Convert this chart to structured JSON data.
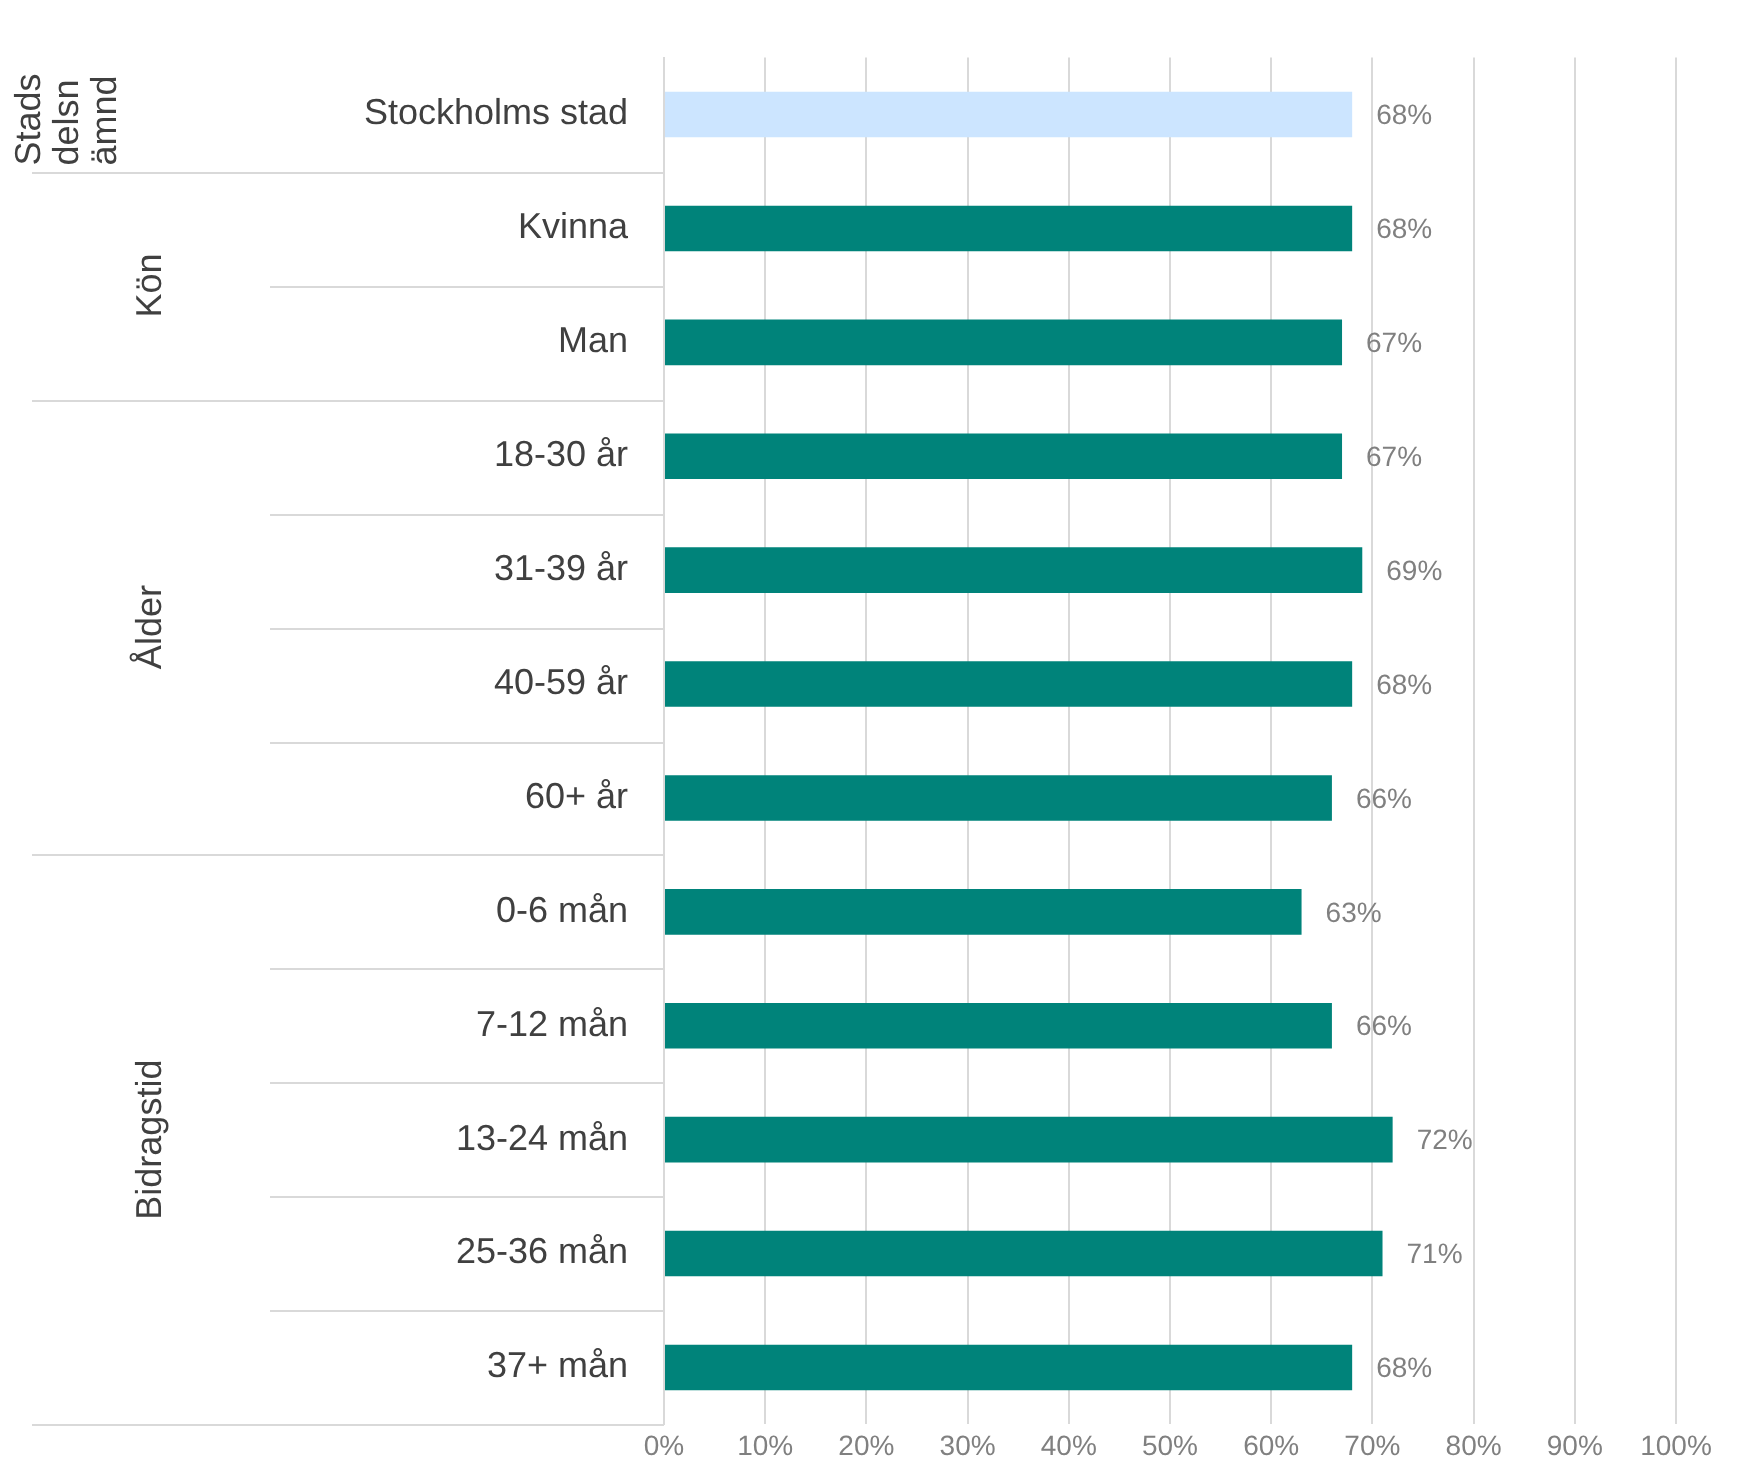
{
  "chart_data": {
    "type": "bar",
    "orientation": "horizontal",
    "categories": [
      "Stockholms stad",
      "Kvinna",
      "Man",
      "18-30 år",
      "31-39 år",
      "40-59 år",
      "60+ år",
      "0-6 mån",
      "7-12 mån",
      "13-24 mån",
      "25-36 mån",
      "37+ mån"
    ],
    "values": [
      68,
      68,
      67,
      67,
      69,
      68,
      66,
      63,
      66,
      72,
      71,
      68
    ],
    "colors": [
      "#cce5ff",
      "#00837a",
      "#00837a",
      "#00837a",
      "#00837a",
      "#00837a",
      "#00837a",
      "#00837a",
      "#00837a",
      "#00837a",
      "#00837a",
      "#00837a"
    ],
    "xlim": [
      0,
      100
    ],
    "xticks": [
      {
        "value": 0,
        "label": "0%"
      },
      {
        "value": 10,
        "label": "10%"
      },
      {
        "value": 20,
        "label": "20%"
      },
      {
        "value": 30,
        "label": "30%"
      },
      {
        "value": 40,
        "label": "40%"
      },
      {
        "value": 50,
        "label": "50%"
      },
      {
        "value": 60,
        "label": "60%"
      },
      {
        "value": 70,
        "label": "70%"
      },
      {
        "value": 80,
        "label": "80%"
      },
      {
        "value": 90,
        "label": "90%"
      },
      {
        "value": 100,
        "label": "100%"
      }
    ],
    "value_labels": [
      "68%",
      "68%",
      "67%",
      "67%",
      "69%",
      "68%",
      "66%",
      "63%",
      "66%",
      "72%",
      "71%",
      "68%"
    ],
    "annotations": [
      "Stadsdelsnämnd",
      "Kön",
      "Ålder",
      "Bidragstid"
    ],
    "grid": "x",
    "legend": false
  }
}
